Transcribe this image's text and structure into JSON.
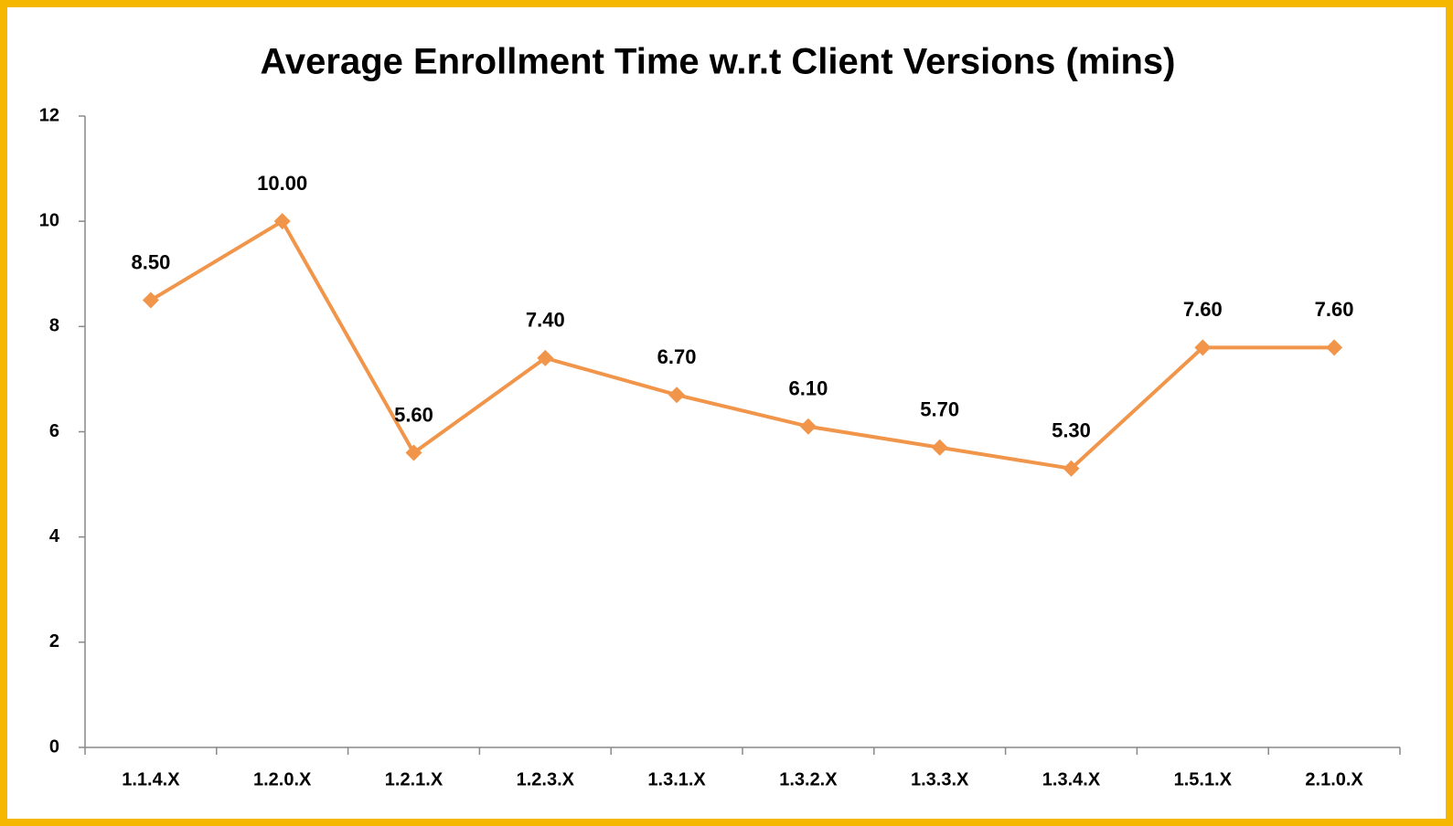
{
  "chart_data": {
    "type": "line",
    "title": "Average Enrollment Time w.r.t Client Versions (mins)",
    "categories": [
      "1.1.4.X",
      "1.2.0.X",
      "1.2.1.X",
      "1.2.3.X",
      "1.3.1.X",
      "1.3.2.X",
      "1.3.3.X",
      "1.3.4.X",
      "1.5.1.X",
      "2.1.0.X"
    ],
    "values": [
      8.5,
      10,
      5.6,
      7.4,
      6.7,
      6.1,
      5.7,
      5.3,
      7.6,
      7.6
    ],
    "value_labels": [
      "8.50",
      "10.00",
      "5.60",
      "7.40",
      "6.70",
      "6.10",
      "5.70",
      "5.30",
      "7.60",
      "7.60"
    ],
    "color": "#f0954a",
    "ylim": [
      0,
      12
    ],
    "yticks": [
      0,
      2,
      4,
      6,
      8,
      10,
      12
    ],
    "grid": false
  }
}
